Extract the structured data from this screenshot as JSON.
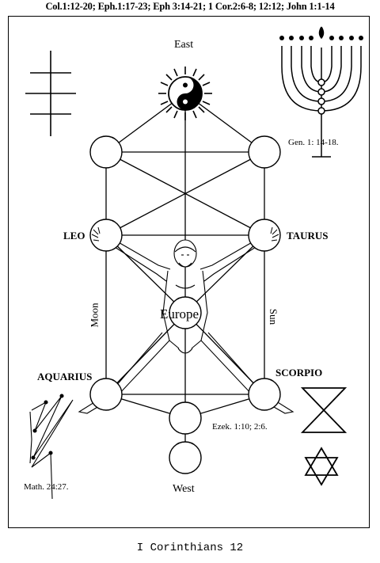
{
  "header": {
    "references": "Col.1:12-20; Eph.1:17-23; Eph 3:14-21; 1 Cor.2:6-8; 12:12; John 1:1-14"
  },
  "directions": {
    "east": "East",
    "west": "West"
  },
  "zodiac": {
    "leo": "LEO",
    "taurus": "TAURUS",
    "aquarius": "AQUARIUS",
    "scorpio": "SCORPIO"
  },
  "pillars": {
    "moon": "Moon",
    "sun": "Sun"
  },
  "center": {
    "label": "Europe"
  },
  "references": {
    "genesis": "Gen. 1: 14-18.",
    "ezekiel": "Ezek. 1:10; 2:6.",
    "matthew": "Math. 24:27."
  },
  "caption": "I Corinthians 12"
}
